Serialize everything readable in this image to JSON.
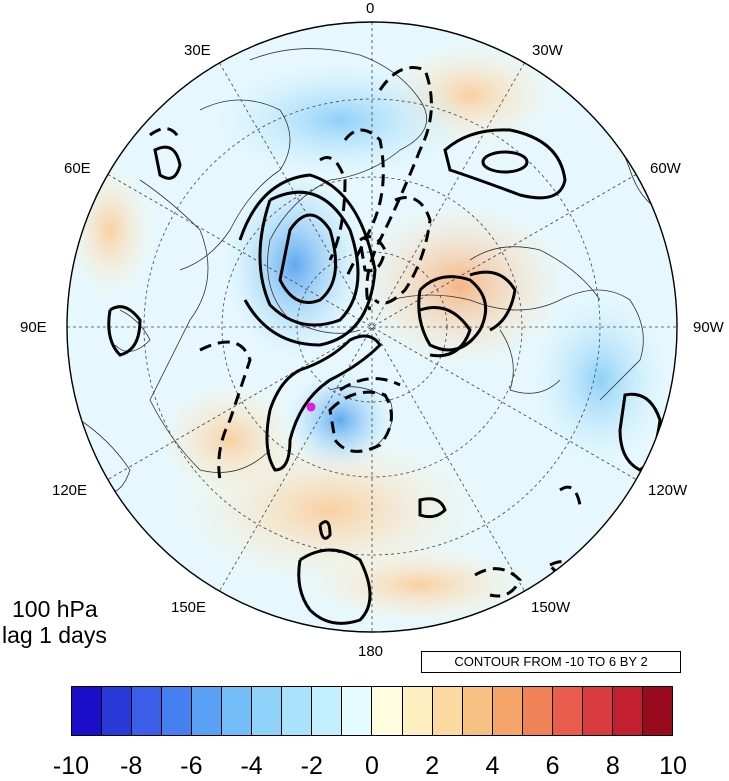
{
  "map": {
    "projection": "north polar stereographic",
    "center_marker_color": "#e01ee0",
    "longitude_labels": {
      "top": "0",
      "top_left": "30E",
      "top_right": "30W",
      "upper_left": "60E",
      "upper_right": "60W",
      "left": "90E",
      "right": "90W",
      "lower_left": "120E",
      "lower_right": "120W",
      "bottom_left": "150E",
      "bottom_right": "150W",
      "bottom": "180"
    }
  },
  "annotations": {
    "level": "100 hPa",
    "lag": "lag 1 days",
    "contour_info": "CONTOUR FROM -10 TO 6 BY 2"
  },
  "colorbar": {
    "colors": [
      "#1a0ec8",
      "#2a3ad8",
      "#3b5fe8",
      "#4680f0",
      "#5aa0f5",
      "#72bcf8",
      "#8ed2f9",
      "#a8e3fb",
      "#c2effd",
      "#e4fbff",
      "#fffde0",
      "#feefc0",
      "#fbd9a0",
      "#f8c184",
      "#f5a46a",
      "#f08258",
      "#ea5c4c",
      "#d93c3e",
      "#c22030",
      "#9a0a1e"
    ],
    "tick_labels": [
      "-10",
      "-8",
      "-6",
      "-4",
      "-2",
      "0",
      "2",
      "4",
      "6",
      "8",
      "10"
    ]
  }
}
